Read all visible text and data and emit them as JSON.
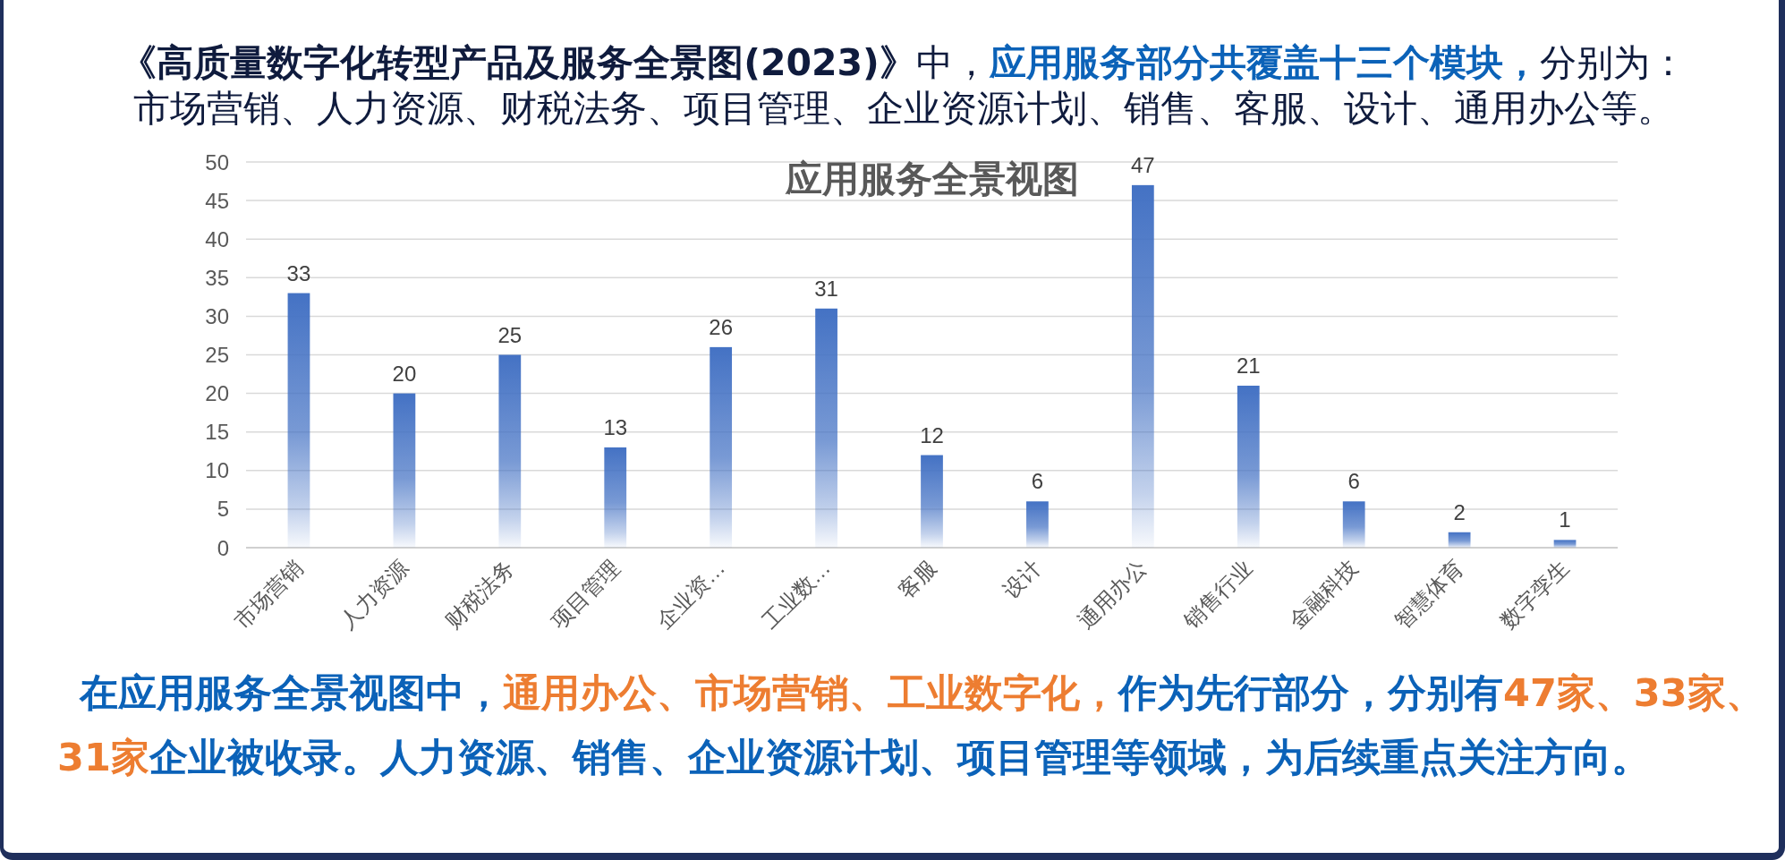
{
  "chart_data": {
    "type": "bar",
    "title": "应用服务全景视图",
    "categories": [
      "市场营销",
      "人力资源",
      "财税法务",
      "项目管理",
      "企业资…",
      "工业数…",
      "客服",
      "设计",
      "通用办公",
      "销售行业",
      "金融科技",
      "智慧体育",
      "数字孪生"
    ],
    "values": [
      33,
      20,
      25,
      13,
      26,
      31,
      12,
      6,
      47,
      21,
      6,
      2,
      1
    ],
    "color": "#4472c4",
    "ylim": [
      0,
      50
    ],
    "yticks": [
      0,
      5,
      10,
      15,
      20,
      25,
      30,
      35,
      40,
      45,
      50
    ],
    "grid": "y",
    "data_labels": true,
    "annotations": [
      "《高质量数字化转型产品及服务全景图(2023)》",
      "中，",
      "应用服务部分共覆盖十三个模块，",
      "分别为：",
      "市场营销、人力资源、财税法务、项目管理、企业资源计划、销售、客服、设计、通用办公等。",
      "在应用服务全景视图中，",
      "通用办公、市场营销、工业数字化，",
      "作为先行部分，分别有",
      "47家、33家、",
      "31家",
      "企业被收录。人力资源、销售、企业资源计划、项目管理等领域，为后续重点关注方向。"
    ]
  }
}
